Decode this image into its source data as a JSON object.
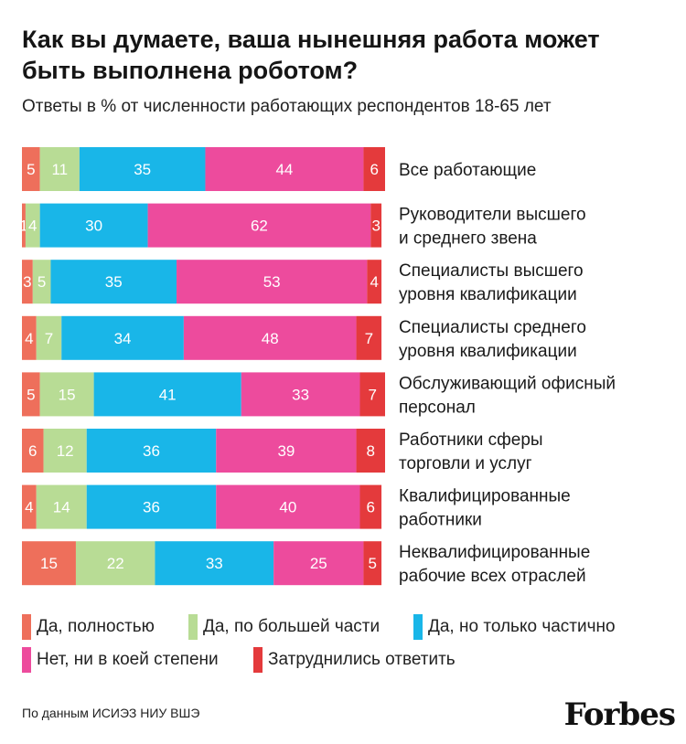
{
  "header": {
    "title": "Как вы думаете, ваша нынешняя работа может быть выполнена роботом?",
    "subtitle": "Ответы в % от численности работающих респондентов 18-65 лет"
  },
  "colors": {
    "full": "#ee6f5b",
    "mostly": "#b8dc95",
    "partial": "#19b6e8",
    "no": "#ed4b9d",
    "unsure": "#e43a3c"
  },
  "chart_data": {
    "type": "bar",
    "orientation": "horizontal",
    "stacked": true,
    "categories": [
      "Все работающие",
      "Руководители высшего и среднего звена",
      "Специалисты высшего уровня квалификации",
      "Специалисты среднего уровня квалификации",
      "Обслуживающий офисный персонал",
      "Работники сферы торговли и услуг",
      "Квалифицированные работники",
      "Неквалифицированные рабочие всех отраслей"
    ],
    "category_lines": [
      [
        "Все работающие"
      ],
      [
        "Руководители высшего",
        "и среднего звена"
      ],
      [
        "Специалисты высшего",
        "уровня квалификации"
      ],
      [
        "Специалисты среднего",
        "уровня квалификации"
      ],
      [
        "Обслуживающий офисный",
        "персонал"
      ],
      [
        "Работники сферы",
        "торговли и услуг"
      ],
      [
        "Квалифицированные",
        "работники"
      ],
      [
        "Неквалифицированные",
        "рабочие всех отраслей"
      ]
    ],
    "series": [
      {
        "name": "Да, полностью",
        "color": "#ee6f5b",
        "values": [
          5,
          1,
          3,
          4,
          5,
          6,
          4,
          15
        ]
      },
      {
        "name": "Да, по большей части",
        "color": "#b8dc95",
        "values": [
          11,
          4,
          5,
          7,
          15,
          12,
          14,
          22
        ]
      },
      {
        "name": "Да, но только частично",
        "color": "#19b6e8",
        "values": [
          35,
          30,
          35,
          34,
          41,
          36,
          36,
          33
        ]
      },
      {
        "name": "Нет, ни в коей степени",
        "color": "#ed4b9d",
        "values": [
          44,
          62,
          53,
          48,
          33,
          39,
          40,
          25
        ]
      },
      {
        "name": "Затруднились ответить",
        "color": "#e43a3c",
        "values": [
          6,
          3,
          4,
          7,
          7,
          8,
          6,
          5
        ]
      }
    ],
    "xlim": [
      0,
      101
    ]
  },
  "footer": {
    "source": "По данным ИСИЭЗ НИУ ВШЭ",
    "brand": "Forbes"
  }
}
